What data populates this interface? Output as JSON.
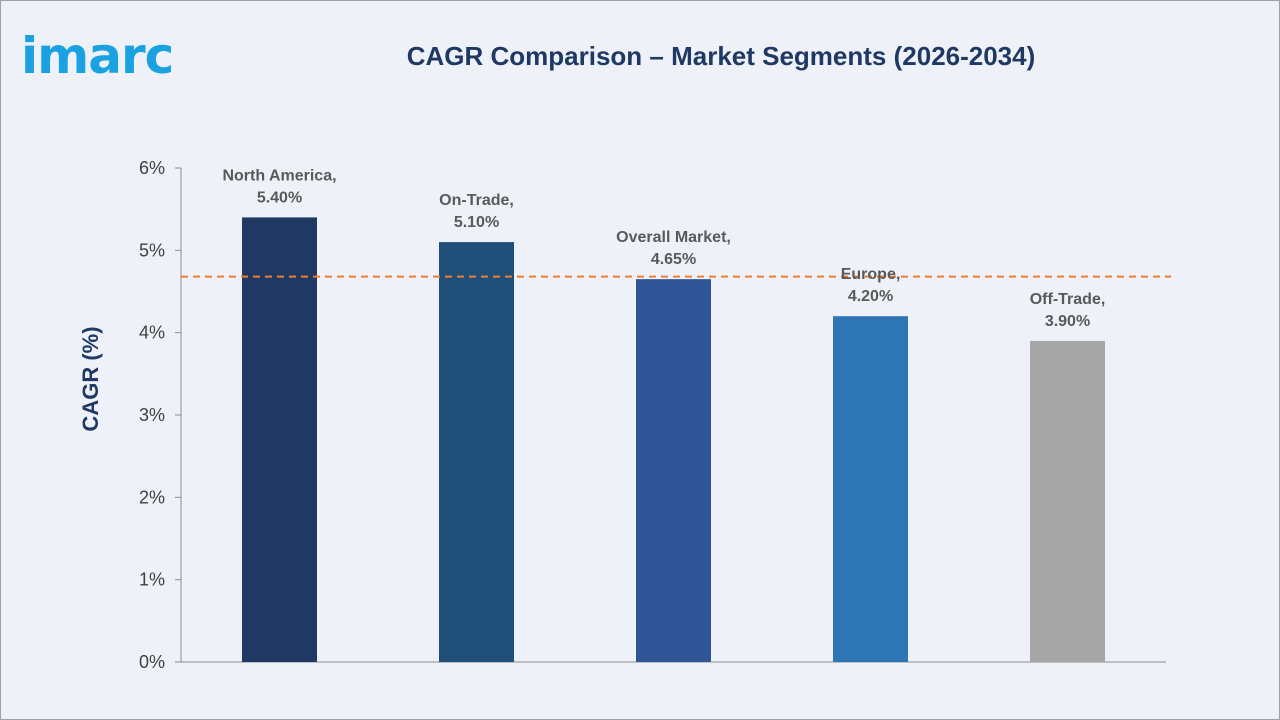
{
  "brand": {
    "logo_text": "imarc",
    "color": "#1aa1e1"
  },
  "chart_data": {
    "type": "bar",
    "title": "CAGR Comparison – Market Segments (2026-2034)",
    "xlabel": "",
    "ylabel": "CAGR (%)",
    "ylim": [
      0,
      6
    ],
    "yticks": [
      "0%",
      "1%",
      "2%",
      "3%",
      "4%",
      "5%",
      "6%"
    ],
    "ytick_values": [
      0,
      1,
      2,
      3,
      4,
      5,
      6
    ],
    "categories": [
      "North America",
      "On-Trade",
      "Overall Market",
      "Europe",
      "Off-Trade"
    ],
    "values": [
      5.4,
      5.1,
      4.65,
      4.2,
      3.9
    ],
    "value_labels": [
      "5.40%",
      "5.10%",
      "4.65%",
      "4.20%",
      "3.90%"
    ],
    "bar_colors": [
      "#203864",
      "#1f4e79",
      "#2f5597",
      "#2e75b6",
      "#a6a6a6"
    ],
    "reference_line": {
      "value": 4.68,
      "style": "dashed",
      "color": "#ed7d31"
    },
    "grid": false,
    "legend": "none"
  }
}
